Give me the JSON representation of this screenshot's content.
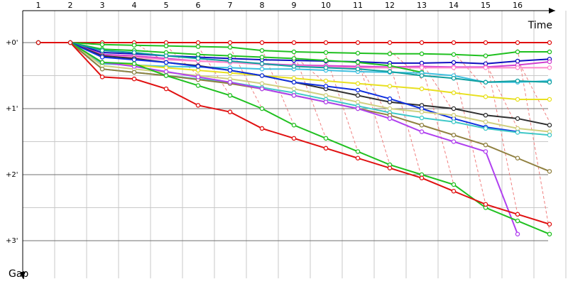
{
  "chart_data": {
    "type": "line",
    "title": "",
    "xlabel": "Time",
    "ylabel": "Gap",
    "x_ticks": [
      "1",
      "2",
      "3",
      "4",
      "5",
      "6",
      "7",
      "8",
      "9",
      "10",
      "11",
      "12",
      "13",
      "14",
      "15",
      "16"
    ],
    "y_ticks": [
      "+0'",
      "+1'",
      "+2'",
      "+3'"
    ],
    "xlim": [
      1,
      17
    ],
    "ylim": [
      0,
      3.1
    ],
    "grid": true,
    "colors": {
      "grid": "#c8c8c8",
      "axis": "#000000",
      "pit_line": "#f08080"
    },
    "series": [
      {
        "color": "#e01010",
        "x": [
          1,
          2,
          3,
          4,
          5,
          6,
          7,
          8,
          9,
          10,
          11,
          12,
          13,
          14,
          15,
          16,
          17
        ],
        "y": [
          0.0,
          0.0,
          0.0,
          0.0,
          0.0,
          0.0,
          0.0,
          0.0,
          0.0,
          0.0,
          0.0,
          0.0,
          0.0,
          0.0,
          0.0,
          0.0,
          0.0
        ]
      },
      {
        "color": "#20c020",
        "x": [
          1,
          2,
          3,
          4,
          5,
          6,
          7,
          8,
          9,
          10,
          11,
          12,
          13,
          14,
          15,
          16,
          17
        ],
        "y": [
          0.0,
          0.0,
          0.03,
          0.04,
          0.05,
          0.06,
          0.07,
          0.12,
          0.14,
          0.15,
          0.16,
          0.17,
          0.17,
          0.18,
          0.2,
          0.14,
          0.14
        ]
      },
      {
        "color": "#1010c0",
        "x": [
          1,
          2,
          3,
          4,
          5,
          6,
          7,
          8,
          9,
          10,
          11,
          12,
          13,
          14,
          15,
          16,
          17
        ],
        "y": [
          0.0,
          0.0,
          0.15,
          0.17,
          0.2,
          0.22,
          0.24,
          0.26,
          0.27,
          0.28,
          0.29,
          0.31,
          0.31,
          0.3,
          0.32,
          0.28,
          0.25
        ]
      },
      {
        "color": "#d040d0",
        "x": [
          1,
          2,
          3,
          4,
          5,
          6,
          7,
          8,
          9,
          10,
          11,
          12,
          13,
          14,
          15,
          16,
          17
        ],
        "y": [
          0.0,
          0.0,
          0.18,
          0.2,
          0.24,
          0.28,
          0.3,
          0.32,
          0.34,
          0.35,
          0.36,
          0.37,
          0.36,
          0.37,
          0.37,
          0.34,
          0.29
        ]
      },
      {
        "color": "#ff88cc",
        "x": [
          1,
          2,
          3,
          4,
          5,
          6,
          7,
          8,
          9,
          10,
          11,
          12,
          13,
          14,
          15,
          16,
          17
        ],
        "y": [
          0.0,
          0.0,
          0.2,
          0.22,
          0.26,
          0.28,
          0.3,
          0.33,
          0.35,
          0.37,
          0.38,
          0.38,
          0.38,
          0.38,
          0.38,
          0.38,
          0.38
        ]
      },
      {
        "color": "#20c020",
        "x": [
          1,
          2,
          3,
          4,
          5,
          6,
          7,
          8,
          9,
          10,
          11,
          12,
          13
        ],
        "y": [
          0.0,
          0.0,
          0.1,
          0.12,
          0.15,
          0.18,
          0.2,
          0.22,
          0.24,
          0.27,
          0.3,
          0.35,
          0.45
        ]
      },
      {
        "color": "#40c0e0",
        "x": [
          1,
          2,
          3,
          4,
          5,
          6,
          7,
          8,
          9,
          10,
          11,
          12,
          13,
          14,
          15,
          16,
          17
        ],
        "y": [
          0.0,
          0.0,
          0.32,
          0.34,
          0.36,
          0.37,
          0.38,
          0.4,
          0.4,
          0.42,
          0.44,
          0.45,
          0.46,
          0.5,
          0.6,
          0.6,
          0.58
        ]
      },
      {
        "color": "#10a0a0",
        "x": [
          1,
          2,
          3,
          4,
          5,
          6,
          7,
          8,
          9,
          10,
          11,
          12,
          13,
          14,
          15,
          16,
          17
        ],
        "y": [
          0.0,
          0.0,
          0.12,
          0.15,
          0.2,
          0.24,
          0.28,
          0.32,
          0.36,
          0.38,
          0.4,
          0.44,
          0.5,
          0.54,
          0.6,
          0.58,
          0.6
        ]
      },
      {
        "color": "#e8e020",
        "x": [
          1,
          2,
          3,
          4,
          5,
          6,
          7,
          8,
          9,
          10,
          11,
          12,
          13,
          14,
          15,
          16,
          17
        ],
        "y": [
          0.0,
          0.0,
          0.3,
          0.34,
          0.38,
          0.42,
          0.46,
          0.5,
          0.54,
          0.58,
          0.62,
          0.66,
          0.7,
          0.76,
          0.82,
          0.86,
          0.86
        ]
      },
      {
        "color": "#303030",
        "x": [
          1,
          2,
          3,
          4,
          5,
          6,
          7,
          8,
          9,
          10,
          11,
          12,
          13,
          14,
          15,
          16,
          17
        ],
        "y": [
          0.0,
          0.0,
          0.2,
          0.24,
          0.3,
          0.35,
          0.42,
          0.5,
          0.6,
          0.7,
          0.8,
          0.9,
          0.95,
          1.0,
          1.1,
          1.15,
          1.25
        ]
      },
      {
        "color": "#1030e0",
        "x": [
          1,
          2,
          3,
          4,
          5,
          6,
          7,
          8,
          9,
          10,
          11,
          12,
          13,
          14,
          15,
          16
        ],
        "y": [
          0.0,
          0.0,
          0.22,
          0.26,
          0.3,
          0.36,
          0.42,
          0.5,
          0.6,
          0.66,
          0.72,
          0.85,
          1.0,
          1.15,
          1.28,
          1.35
        ]
      },
      {
        "color": "#d0d080",
        "x": [
          1,
          2,
          3,
          4,
          5,
          6,
          7,
          8,
          9,
          10,
          11,
          12,
          13,
          14,
          15,
          16,
          17
        ],
        "y": [
          0.0,
          0.0,
          0.35,
          0.4,
          0.45,
          0.5,
          0.55,
          0.62,
          0.7,
          0.8,
          0.9,
          1.0,
          1.05,
          1.1,
          1.2,
          1.3,
          1.35
        ]
      },
      {
        "color": "#40c8c8",
        "x": [
          1,
          2,
          3,
          4,
          5,
          6,
          7,
          8,
          9,
          10,
          11,
          12,
          13,
          14,
          15,
          16,
          17
        ],
        "y": [
          0.0,
          0.0,
          0.4,
          0.45,
          0.5,
          0.55,
          0.6,
          0.68,
          0.76,
          0.86,
          0.96,
          1.06,
          1.14,
          1.2,
          1.3,
          1.36,
          1.4
        ]
      },
      {
        "color": "#908040",
        "x": [
          1,
          2,
          3,
          4,
          5,
          6,
          7,
          8,
          9,
          10,
          11,
          12,
          13,
          14,
          15,
          16,
          17
        ],
        "y": [
          0.0,
          0.0,
          0.4,
          0.45,
          0.5,
          0.56,
          0.62,
          0.7,
          0.8,
          0.9,
          1.0,
          1.1,
          1.25,
          1.4,
          1.55,
          1.75,
          1.95
        ]
      },
      {
        "color": "#b040f0",
        "x": [
          1,
          2,
          3,
          4,
          5,
          6,
          7,
          8,
          9,
          10,
          11,
          12,
          13,
          14,
          15,
          16
        ],
        "y": [
          0.0,
          0.0,
          0.3,
          0.36,
          0.44,
          0.52,
          0.6,
          0.7,
          0.8,
          0.9,
          1.0,
          1.15,
          1.35,
          1.5,
          1.65,
          2.9
        ]
      },
      {
        "color": "#20c020",
        "x": [
          1,
          2,
          3,
          4,
          5,
          6,
          7,
          8,
          9,
          10,
          11,
          12,
          13,
          14,
          15,
          16,
          17
        ],
        "y": [
          0.0,
          0.0,
          0.3,
          0.32,
          0.5,
          0.65,
          0.8,
          1.0,
          1.25,
          1.45,
          1.65,
          1.85,
          2.0,
          2.15,
          2.5,
          2.7,
          2.9
        ]
      },
      {
        "color": "#e01010",
        "x": [
          1,
          2,
          3,
          4,
          5,
          6,
          7,
          8,
          9,
          10,
          11,
          12,
          13,
          14,
          15,
          16,
          17
        ],
        "y": [
          0.0,
          0.0,
          0.52,
          0.55,
          0.7,
          0.95,
          1.05,
          1.3,
          1.45,
          1.6,
          1.75,
          1.9,
          2.05,
          2.25,
          2.45,
          2.6,
          2.75
        ]
      }
    ],
    "pit_stops": [
      [
        2,
        0.0,
        3,
        0.12
      ],
      [
        4,
        0.0,
        5,
        0.3
      ],
      [
        5,
        0.05,
        6,
        0.5
      ],
      [
        6,
        0.06,
        7,
        0.8
      ],
      [
        7,
        0.07,
        8,
        1.0
      ],
      [
        8,
        0.1,
        9,
        1.25
      ],
      [
        9,
        0.16,
        10,
        1.45
      ],
      [
        10,
        0.2,
        11,
        1.65
      ],
      [
        11,
        0.25,
        12,
        1.85
      ],
      [
        12,
        0.3,
        13,
        2.05
      ],
      [
        13,
        0.33,
        14,
        2.15
      ],
      [
        14,
        0.38,
        15,
        2.45
      ],
      [
        15,
        0.2,
        16,
        2.6
      ],
      [
        16,
        0.1,
        17,
        2.85
      ],
      [
        12,
        0.12,
        13,
        0.55
      ],
      [
        14,
        0.15,
        15,
        0.7
      ],
      [
        15,
        0.3,
        16,
        1.3
      ],
      [
        16,
        0.26,
        17,
        1.2
      ],
      [
        9,
        0.2,
        10,
        0.62
      ],
      [
        13,
        0.3,
        14,
        1.05
      ],
      [
        11,
        0.3,
        12,
        1.15
      ]
    ]
  }
}
